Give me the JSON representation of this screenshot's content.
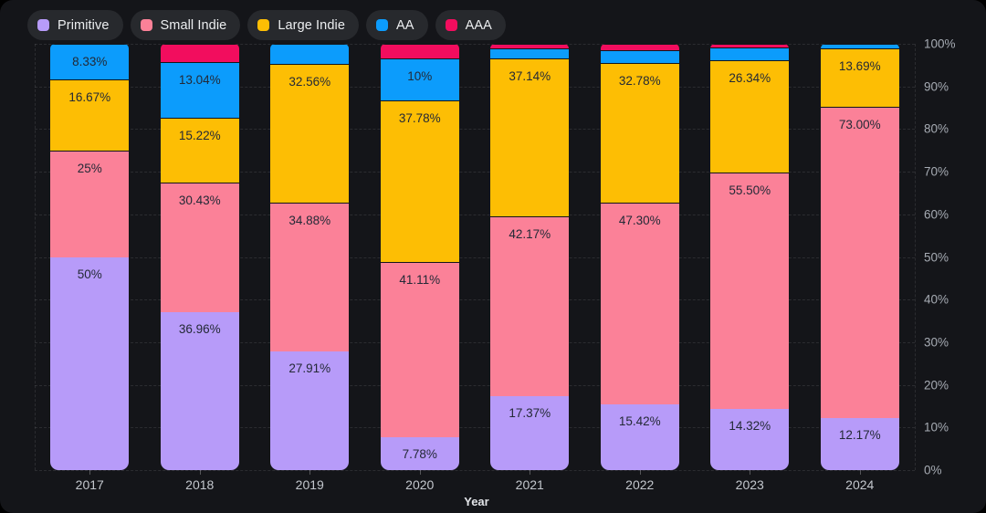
{
  "legend": {
    "items": [
      {
        "label": "Primitive",
        "color": "#b79bf9"
      },
      {
        "label": "Small Indie",
        "color": "#fb8198"
      },
      {
        "label": "Large Indie",
        "color": "#fdbe04"
      },
      {
        "label": "AA",
        "color": "#0c9cfc"
      },
      {
        "label": "AAA",
        "color": "#f20d5e"
      }
    ]
  },
  "axes": {
    "x_title": "Year",
    "y_tick_labels": [
      "0%",
      "10%",
      "20%",
      "30%",
      "40%",
      "50%",
      "60%",
      "70%",
      "80%",
      "90%",
      "100%"
    ]
  },
  "chart_data": {
    "type": "bar",
    "stacked": true,
    "percent_stacked": true,
    "title": "",
    "xlabel": "Year",
    "ylabel": "",
    "ylim": [
      0,
      100
    ],
    "grid": true,
    "legend_position": "top-left",
    "categories": [
      "2017",
      "2018",
      "2019",
      "2020",
      "2021",
      "2022",
      "2023",
      "2024"
    ],
    "series": [
      {
        "name": "Primitive",
        "color": "#b79bf9",
        "values": [
          50,
          36.96,
          27.91,
          7.78,
          17.37,
          15.42,
          14.32,
          12.17
        ],
        "labels": [
          "50%",
          "36.96%",
          "27.91%",
          "7.78%",
          "17.37%",
          "15.42%",
          "14.32%",
          "12.17%"
        ]
      },
      {
        "name": "Small Indie",
        "color": "#fb8198",
        "values": [
          25,
          30.43,
          34.88,
          41.11,
          42.17,
          47.3,
          55.5,
          73.0
        ],
        "labels": [
          "25%",
          "30.43%",
          "34.88%",
          "41.11%",
          "42.17%",
          "47.30%",
          "55.50%",
          "73.00%"
        ]
      },
      {
        "name": "Large Indie",
        "color": "#fdbe04",
        "values": [
          16.67,
          15.22,
          32.56,
          37.78,
          37.14,
          32.78,
          26.34,
          13.69
        ],
        "labels": [
          "16.67%",
          "15.22%",
          "32.56%",
          "37.78%",
          "37.14%",
          "32.78%",
          "26.34%",
          "13.69%"
        ]
      },
      {
        "name": "AA",
        "color": "#0c9cfc",
        "values": [
          8.33,
          13.04,
          4.65,
          10,
          2.3,
          3.0,
          3.0,
          1.14
        ],
        "labels": [
          "8.33%",
          "13.04%",
          null,
          "10%",
          null,
          null,
          null,
          null
        ]
      },
      {
        "name": "AAA",
        "color": "#f20d5e",
        "values": [
          0,
          4.35,
          0,
          3.33,
          1.02,
          1.5,
          0.84,
          0
        ],
        "labels": [
          null,
          null,
          null,
          null,
          null,
          null,
          null,
          null
        ]
      }
    ],
    "label_text_color": "#232936"
  }
}
